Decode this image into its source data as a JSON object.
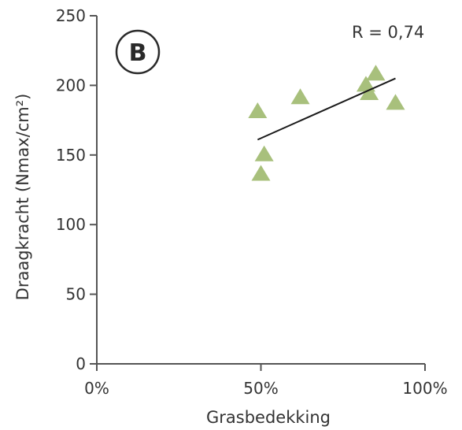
{
  "chart_data": {
    "type": "scatter",
    "panel_label": "B",
    "annotation": "R = 0,74",
    "xlabel": "Grasbedekking",
    "ylabel": "Draagkracht (Nmax/cm²)",
    "xlim": [
      0,
      100
    ],
    "ylim": [
      0,
      250
    ],
    "x_ticks": [
      0,
      50,
      100
    ],
    "x_tick_labels": [
      "0%",
      "50%",
      "100%"
    ],
    "y_ticks": [
      0,
      50,
      100,
      150,
      200,
      250
    ],
    "y_tick_labels": [
      "0",
      "50",
      "100",
      "150",
      "200",
      "250"
    ],
    "grid": false,
    "marker": "triangle",
    "marker_color": "#a8c07c",
    "points": [
      {
        "x": 49,
        "y": 181
      },
      {
        "x": 50,
        "y": 136
      },
      {
        "x": 51,
        "y": 150
      },
      {
        "x": 62,
        "y": 191
      },
      {
        "x": 82,
        "y": 200
      },
      {
        "x": 83,
        "y": 194
      },
      {
        "x": 85,
        "y": 208
      },
      {
        "x": 91,
        "y": 187
      }
    ],
    "trendline": {
      "x": [
        49,
        91
      ],
      "y": [
        161,
        205
      ]
    }
  }
}
